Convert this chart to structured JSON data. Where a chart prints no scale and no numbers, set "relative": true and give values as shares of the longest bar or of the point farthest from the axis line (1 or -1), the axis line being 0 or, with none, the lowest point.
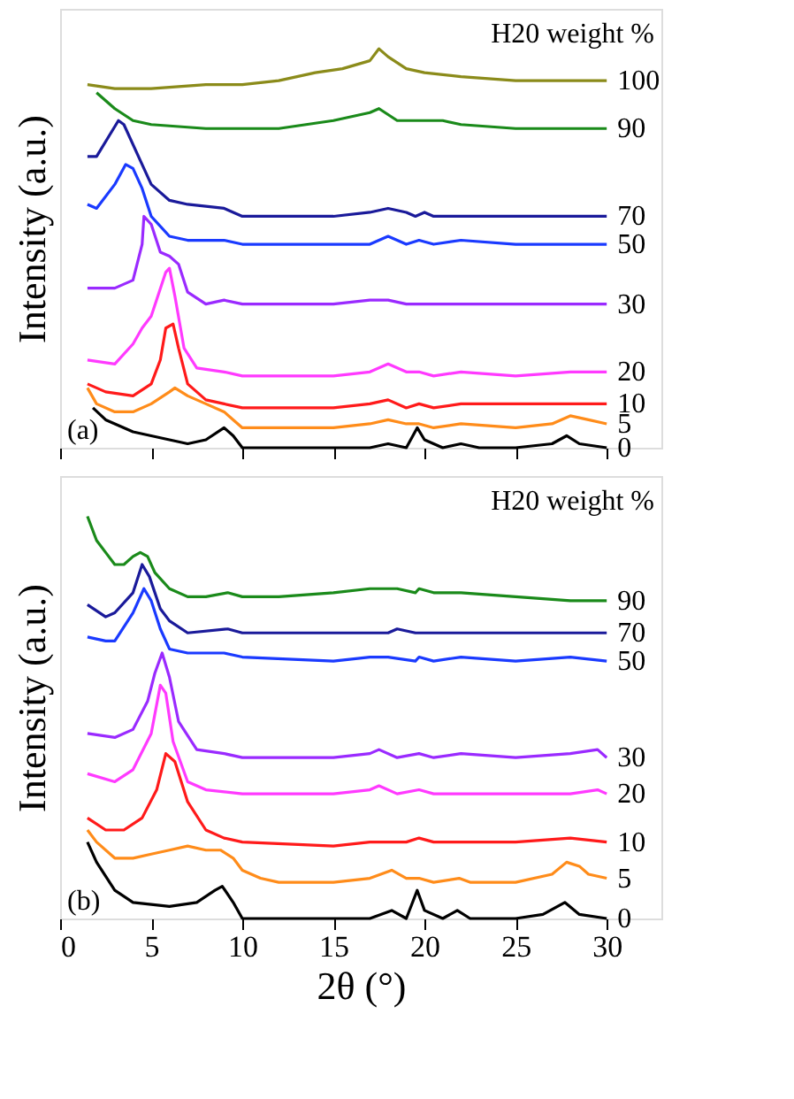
{
  "chart_data": [
    {
      "type": "line",
      "relative": true,
      "ylabel": "Intensity (a.u.)",
      "xlim": [
        0,
        33
      ],
      "xticks": [
        0,
        5,
        10,
        15,
        20,
        25,
        30
      ],
      "tick_labels": false,
      "grid": false,
      "annotations": [
        "H20 weight %",
        "(a)"
      ],
      "series": [
        {
          "name": "100",
          "color": "#8b8b1a",
          "x": [
            1.5,
            3,
            5,
            8,
            10,
            12,
            14,
            15.5,
            17,
            17.5,
            18,
            19,
            20,
            22,
            25,
            28,
            30
          ],
          "values": [
            0.91,
            0.9,
            0.9,
            0.91,
            0.91,
            0.92,
            0.94,
            0.95,
            0.97,
            1.0,
            0.98,
            0.95,
            0.94,
            0.93,
            0.92,
            0.92,
            0.92
          ]
        },
        {
          "name": "90",
          "color": "#1a8a1a",
          "x": [
            2,
            3,
            4,
            5,
            8,
            12,
            15,
            17,
            17.5,
            18.5,
            19.5,
            20,
            21,
            22,
            25,
            30
          ],
          "values": [
            0.89,
            0.85,
            0.82,
            0.81,
            0.8,
            0.8,
            0.82,
            0.84,
            0.85,
            0.82,
            0.82,
            0.82,
            0.82,
            0.81,
            0.8,
            0.8
          ]
        },
        {
          "name": "70",
          "color": "#1a1a9a",
          "x": [
            1.5,
            2,
            3.2,
            3.5,
            4.5,
            5,
            6,
            7,
            9,
            10,
            12,
            15,
            17,
            18,
            19,
            19.5,
            20,
            20.5,
            22,
            25,
            30
          ],
          "values": [
            0.73,
            0.73,
            0.82,
            0.81,
            0.71,
            0.66,
            0.62,
            0.61,
            0.6,
            0.58,
            0.58,
            0.58,
            0.59,
            0.6,
            0.59,
            0.58,
            0.59,
            0.58,
            0.58,
            0.58,
            0.58
          ]
        },
        {
          "name": "50",
          "color": "#1a3aff",
          "x": [
            1.5,
            2,
            3,
            3.6,
            4,
            4.5,
            5,
            6,
            7,
            9,
            10,
            15,
            17,
            18,
            19,
            19.7,
            20.5,
            22,
            25,
            30
          ],
          "values": [
            0.61,
            0.6,
            0.66,
            0.71,
            0.7,
            0.65,
            0.58,
            0.53,
            0.52,
            0.52,
            0.51,
            0.51,
            0.51,
            0.53,
            0.51,
            0.52,
            0.51,
            0.52,
            0.51,
            0.51
          ]
        },
        {
          "name": "30",
          "color": "#9a2aff",
          "x": [
            1.5,
            3,
            4,
            4.5,
            4.6,
            5,
            5.5,
            6,
            6.5,
            7,
            8,
            9,
            10,
            12,
            15,
            17,
            18,
            19,
            19.7,
            20.5,
            22,
            25,
            30
          ],
          "values": [
            0.4,
            0.4,
            0.42,
            0.51,
            0.58,
            0.56,
            0.49,
            0.48,
            0.46,
            0.39,
            0.36,
            0.37,
            0.36,
            0.36,
            0.36,
            0.37,
            0.37,
            0.36,
            0.36,
            0.36,
            0.36,
            0.36,
            0.36
          ]
        },
        {
          "name": "20",
          "color": "#ff3aff",
          "x": [
            1.5,
            3,
            4,
            4.5,
            5,
            5.8,
            6,
            6.3,
            6.8,
            7.5,
            9,
            10,
            15,
            17,
            18,
            19,
            19.7,
            20.5,
            22,
            25,
            28,
            30
          ],
          "values": [
            0.22,
            0.21,
            0.26,
            0.3,
            0.33,
            0.44,
            0.45,
            0.38,
            0.25,
            0.2,
            0.19,
            0.18,
            0.18,
            0.19,
            0.21,
            0.19,
            0.19,
            0.18,
            0.19,
            0.18,
            0.19,
            0.19
          ]
        },
        {
          "name": "10",
          "color": "#ff1a1a",
          "x": [
            1.5,
            2.5,
            4,
            5,
            5.5,
            5.8,
            6.2,
            6.5,
            7,
            8,
            9,
            10,
            15,
            17,
            18,
            19,
            19.7,
            20.5,
            22,
            25,
            30
          ],
          "values": [
            0.16,
            0.14,
            0.13,
            0.16,
            0.22,
            0.3,
            0.31,
            0.25,
            0.16,
            0.12,
            0.11,
            0.1,
            0.1,
            0.11,
            0.12,
            0.1,
            0.11,
            0.1,
            0.11,
            0.11,
            0.11
          ]
        },
        {
          "name": "5",
          "color": "#ff8c1a",
          "x": [
            1.5,
            2,
            3,
            4,
            5,
            6,
            6.3,
            7,
            8,
            9,
            9.5,
            10,
            12,
            15,
            17,
            18,
            19,
            19.7,
            20.5,
            22,
            25,
            27,
            28,
            29,
            30
          ],
          "values": [
            0.15,
            0.11,
            0.09,
            0.09,
            0.11,
            0.14,
            0.15,
            0.13,
            0.11,
            0.09,
            0.07,
            0.05,
            0.05,
            0.05,
            0.06,
            0.07,
            0.06,
            0.06,
            0.05,
            0.06,
            0.05,
            0.06,
            0.08,
            0.07,
            0.06
          ]
        },
        {
          "name": "0",
          "color": "#000000",
          "x": [
            1.8,
            2.5,
            4,
            6,
            7,
            8,
            9,
            9.5,
            10,
            12,
            17,
            18,
            19,
            19.6,
            20,
            21,
            22,
            23,
            25,
            27,
            27.8,
            28.5,
            30
          ],
          "values": [
            0.1,
            0.07,
            0.04,
            0.02,
            0.01,
            0.02,
            0.05,
            0.03,
            0.0,
            0.0,
            0.0,
            0.01,
            0.0,
            0.05,
            0.02,
            0.0,
            0.01,
            0.0,
            0.0,
            0.01,
            0.03,
            0.01,
            0.0
          ]
        }
      ]
    },
    {
      "type": "line",
      "relative": true,
      "ylabel": "Intensity (a.u.)",
      "xlabel": "2θ (°)",
      "xlim": [
        0,
        33
      ],
      "xticks": [
        0,
        5,
        10,
        15,
        20,
        25,
        30
      ],
      "tick_labels": "x",
      "grid": false,
      "annotations": [
        "H20 weight %",
        "(b)"
      ],
      "series": [
        {
          "name": "90",
          "color": "#1a8a1a",
          "x": [
            1.5,
            2,
            2.5,
            3,
            3.5,
            4,
            4.4,
            4.8,
            5.2,
            6,
            7,
            8,
            9.2,
            10,
            12,
            15,
            17,
            18.5,
            19.5,
            19.7,
            20.5,
            22,
            25,
            28,
            30
          ],
          "values": [
            1.0,
            0.94,
            0.91,
            0.88,
            0.88,
            0.9,
            0.91,
            0.9,
            0.86,
            0.82,
            0.8,
            0.8,
            0.81,
            0.8,
            0.8,
            0.81,
            0.82,
            0.82,
            0.81,
            0.82,
            0.81,
            0.81,
            0.8,
            0.79,
            0.79
          ]
        },
        {
          "name": "70",
          "color": "#1a1a9a",
          "x": [
            1.5,
            2.5,
            3,
            4,
            4.5,
            4.9,
            5.5,
            6,
            7,
            9.2,
            10,
            15,
            18,
            18.5,
            19.5,
            19.7,
            20.5,
            22,
            25,
            28,
            30
          ],
          "values": [
            0.78,
            0.75,
            0.76,
            0.81,
            0.88,
            0.85,
            0.77,
            0.74,
            0.71,
            0.72,
            0.71,
            0.71,
            0.71,
            0.72,
            0.71,
            0.71,
            0.71,
            0.71,
            0.71,
            0.71,
            0.71
          ]
        },
        {
          "name": "50",
          "color": "#1a3aff",
          "x": [
            1.5,
            2.5,
            3,
            4,
            4.6,
            5,
            5.5,
            6,
            7,
            9,
            10,
            15,
            17,
            18,
            19.5,
            19.7,
            20.5,
            22,
            25,
            28,
            30
          ],
          "values": [
            0.7,
            0.69,
            0.69,
            0.76,
            0.82,
            0.79,
            0.72,
            0.67,
            0.66,
            0.66,
            0.65,
            0.64,
            0.65,
            0.65,
            0.64,
            0.65,
            0.64,
            0.65,
            0.64,
            0.65,
            0.64
          ]
        },
        {
          "name": "30",
          "color": "#9a2aff",
          "x": [
            1.5,
            3,
            4,
            4.8,
            5.2,
            5.6,
            6,
            6.5,
            7.5,
            9,
            10,
            15,
            17,
            17.5,
            18.5,
            19.7,
            20.5,
            22,
            25,
            28,
            29.5,
            30
          ],
          "values": [
            0.46,
            0.45,
            0.47,
            0.54,
            0.61,
            0.66,
            0.6,
            0.49,
            0.42,
            0.41,
            0.4,
            0.4,
            0.41,
            0.42,
            0.4,
            0.41,
            0.4,
            0.41,
            0.4,
            0.41,
            0.42,
            0.4
          ]
        },
        {
          "name": "20",
          "color": "#ff3aff",
          "x": [
            1.5,
            3,
            4,
            5,
            5.5,
            5.8,
            6.2,
            7,
            8,
            10,
            15,
            17,
            17.5,
            18.5,
            19.7,
            20.5,
            25,
            28,
            29.5,
            30
          ],
          "values": [
            0.36,
            0.34,
            0.37,
            0.46,
            0.58,
            0.56,
            0.44,
            0.34,
            0.32,
            0.31,
            0.31,
            0.32,
            0.33,
            0.31,
            0.32,
            0.31,
            0.31,
            0.31,
            0.32,
            0.31
          ]
        },
        {
          "name": "10",
          "color": "#ff1a1a",
          "x": [
            1.5,
            2.5,
            3.5,
            4.5,
            5.3,
            5.8,
            6.3,
            7,
            8,
            9,
            10,
            15,
            17,
            17.5,
            19,
            19.7,
            20.5,
            22,
            25,
            28,
            30
          ],
          "values": [
            0.25,
            0.22,
            0.22,
            0.25,
            0.32,
            0.41,
            0.39,
            0.29,
            0.22,
            0.2,
            0.19,
            0.18,
            0.19,
            0.19,
            0.19,
            0.2,
            0.19,
            0.19,
            0.19,
            0.2,
            0.19
          ]
        },
        {
          "name": "5",
          "color": "#ff8c1a",
          "x": [
            1.5,
            2,
            3,
            4,
            5,
            6,
            7,
            8,
            8.8,
            9.5,
            10,
            11,
            12,
            15,
            17,
            18.2,
            19,
            19.7,
            20.5,
            21.9,
            22.5,
            25,
            27,
            27.8,
            28.5,
            29,
            30
          ],
          "values": [
            0.22,
            0.19,
            0.15,
            0.15,
            0.16,
            0.17,
            0.18,
            0.17,
            0.17,
            0.15,
            0.12,
            0.1,
            0.09,
            0.09,
            0.1,
            0.12,
            0.1,
            0.1,
            0.09,
            0.1,
            0.09,
            0.09,
            0.11,
            0.14,
            0.13,
            0.11,
            0.1
          ]
        },
        {
          "name": "0",
          "color": "#000000",
          "x": [
            1.5,
            2,
            3,
            4,
            6,
            7.5,
            8.5,
            8.9,
            9.5,
            10,
            15,
            17,
            18.2,
            19,
            19.6,
            20,
            21,
            21.8,
            22.5,
            25,
            26.5,
            27.7,
            28.5,
            30
          ],
          "values": [
            0.19,
            0.14,
            0.07,
            0.04,
            0.03,
            0.04,
            0.07,
            0.08,
            0.04,
            0.0,
            0.0,
            0.0,
            0.02,
            0.0,
            0.07,
            0.02,
            0.0,
            0.02,
            0.0,
            0.0,
            0.01,
            0.04,
            0.01,
            0.0
          ]
        }
      ]
    }
  ]
}
